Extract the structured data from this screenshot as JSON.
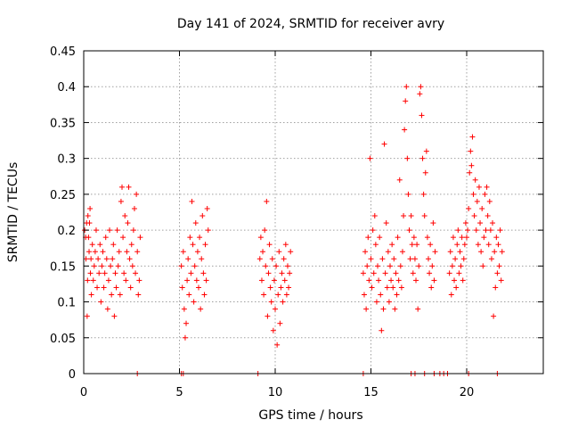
{
  "chart_data": {
    "type": "scatter",
    "title": "Day 141 of 2024, SRMTID for receiver avry",
    "xlabel": "GPS time / hours",
    "ylabel": "SRMTID / TECUs",
    "xlim": [
      0,
      24
    ],
    "ylim": [
      0,
      0.45
    ],
    "xticks": [
      0,
      5,
      10,
      15,
      20
    ],
    "xtick_labels": [
      "0",
      "5",
      "10",
      "15",
      "20"
    ],
    "yticks": [
      0,
      0.05,
      0.1,
      0.15,
      0.2,
      0.25,
      0.3,
      0.35,
      0.4,
      0.45
    ],
    "ytick_labels": [
      "0",
      "0.05",
      "0.1",
      "0.15",
      "0.2",
      "0.25",
      "0.3",
      "0.35",
      "0.4",
      "0.45"
    ],
    "grid": true,
    "marker": "plus",
    "color": "#ff0000",
    "series": [
      {
        "name": "SRMTID",
        "points": [
          [
            0.05,
            0.2
          ],
          [
            0.1,
            0.19
          ],
          [
            0.12,
            0.16
          ],
          [
            0.15,
            0.21
          ],
          [
            0.18,
            0.08
          ],
          [
            0.2,
            0.13
          ],
          [
            0.22,
            0.22
          ],
          [
            0.25,
            0.19
          ],
          [
            0.28,
            0.17
          ],
          [
            0.3,
            0.21
          ],
          [
            0.33,
            0.23
          ],
          [
            0.35,
            0.14
          ],
          [
            0.38,
            0.16
          ],
          [
            0.4,
            0.11
          ],
          [
            0.45,
            0.18
          ],
          [
            0.5,
            0.13
          ],
          [
            0.55,
            0.15
          ],
          [
            0.6,
            0.17
          ],
          [
            0.65,
            0.2
          ],
          [
            0.7,
            0.12
          ],
          [
            0.75,
            0.16
          ],
          [
            0.8,
            0.14
          ],
          [
            0.85,
            0.18
          ],
          [
            0.9,
            0.1
          ],
          [
            0.95,
            0.15
          ],
          [
            1.0,
            0.17
          ],
          [
            1.05,
            0.12
          ],
          [
            1.1,
            0.14
          ],
          [
            1.15,
            0.19
          ],
          [
            1.2,
            0.16
          ],
          [
            1.25,
            0.09
          ],
          [
            1.3,
            0.13
          ],
          [
            1.35,
            0.2
          ],
          [
            1.4,
            0.15
          ],
          [
            1.45,
            0.11
          ],
          [
            1.5,
            0.16
          ],
          [
            1.55,
            0.18
          ],
          [
            1.6,
            0.08
          ],
          [
            1.65,
            0.14
          ],
          [
            1.7,
            0.12
          ],
          [
            1.75,
            0.2
          ],
          [
            1.8,
            0.15
          ],
          [
            1.85,
            0.17
          ],
          [
            1.9,
            0.11
          ],
          [
            1.95,
            0.24
          ],
          [
            2.0,
            0.26
          ],
          [
            2.05,
            0.19
          ],
          [
            2.1,
            0.14
          ],
          [
            2.15,
            0.22
          ],
          [
            2.2,
            0.13
          ],
          [
            2.25,
            0.17
          ],
          [
            2.3,
            0.21
          ],
          [
            2.35,
            0.26
          ],
          [
            2.4,
            0.16
          ],
          [
            2.45,
            0.12
          ],
          [
            2.5,
            0.18
          ],
          [
            2.55,
            0.15
          ],
          [
            2.6,
            0.2
          ],
          [
            2.65,
            0.23
          ],
          [
            2.7,
            0.14
          ],
          [
            2.75,
            0.25
          ],
          [
            2.8,
            0.17
          ],
          [
            2.85,
            0.11
          ],
          [
            2.9,
            0.13
          ],
          [
            2.95,
            0.19
          ],
          [
            5.1,
            0.15
          ],
          [
            5.15,
            0.12
          ],
          [
            5.2,
            0.17
          ],
          [
            5.25,
            0.09
          ],
          [
            5.3,
            0.05
          ],
          [
            5.35,
            0.07
          ],
          [
            5.4,
            0.13
          ],
          [
            5.45,
            0.16
          ],
          [
            5.5,
            0.11
          ],
          [
            5.55,
            0.19
          ],
          [
            5.6,
            0.14
          ],
          [
            5.65,
            0.24
          ],
          [
            5.7,
            0.18
          ],
          [
            5.75,
            0.1
          ],
          [
            5.8,
            0.15
          ],
          [
            5.85,
            0.21
          ],
          [
            5.9,
            0.13
          ],
          [
            5.95,
            0.17
          ],
          [
            6.0,
            0.12
          ],
          [
            6.05,
            0.19
          ],
          [
            6.1,
            0.09
          ],
          [
            6.15,
            0.16
          ],
          [
            6.2,
            0.22
          ],
          [
            6.25,
            0.14
          ],
          [
            6.3,
            0.11
          ],
          [
            6.35,
            0.18
          ],
          [
            6.4,
            0.13
          ],
          [
            6.45,
            0.23
          ],
          [
            6.5,
            0.2
          ],
          [
            9.2,
            0.16
          ],
          [
            9.25,
            0.19
          ],
          [
            9.3,
            0.13
          ],
          [
            9.35,
            0.17
          ],
          [
            9.4,
            0.11
          ],
          [
            9.45,
            0.2
          ],
          [
            9.5,
            0.15
          ],
          [
            9.55,
            0.24
          ],
          [
            9.6,
            0.08
          ],
          [
            9.65,
            0.14
          ],
          [
            9.7,
            0.18
          ],
          [
            9.75,
            0.12
          ],
          [
            9.8,
            0.1
          ],
          [
            9.85,
            0.16
          ],
          [
            9.9,
            0.06
          ],
          [
            9.95,
            0.13
          ],
          [
            10.0,
            0.09
          ],
          [
            10.05,
            0.15
          ],
          [
            10.1,
            0.04
          ],
          [
            10.15,
            0.11
          ],
          [
            10.2,
            0.17
          ],
          [
            10.25,
            0.07
          ],
          [
            10.3,
            0.12
          ],
          [
            10.35,
            0.14
          ],
          [
            10.4,
            0.1
          ],
          [
            10.45,
            0.16
          ],
          [
            10.5,
            0.13
          ],
          [
            10.55,
            0.18
          ],
          [
            10.6,
            0.11
          ],
          [
            10.65,
            0.15
          ],
          [
            10.7,
            0.12
          ],
          [
            10.75,
            0.14
          ],
          [
            10.8,
            0.17
          ],
          [
            14.6,
            0.14
          ],
          [
            14.65,
            0.11
          ],
          [
            14.7,
            0.17
          ],
          [
            14.75,
            0.09
          ],
          [
            14.8,
            0.15
          ],
          [
            14.85,
            0.19
          ],
          [
            14.9,
            0.13
          ],
          [
            14.95,
            0.3
          ],
          [
            15.0,
            0.16
          ],
          [
            15.05,
            0.12
          ],
          [
            15.1,
            0.2
          ],
          [
            15.15,
            0.14
          ],
          [
            15.2,
            0.22
          ],
          [
            15.25,
            0.18
          ],
          [
            15.3,
            0.1
          ],
          [
            15.35,
            0.15
          ],
          [
            15.4,
            0.13
          ],
          [
            15.45,
            0.19
          ],
          [
            15.5,
            0.11
          ],
          [
            15.55,
            0.06
          ],
          [
            15.6,
            0.16
          ],
          [
            15.65,
            0.09
          ],
          [
            15.7,
            0.32
          ],
          [
            15.75,
            0.14
          ],
          [
            15.8,
            0.21
          ],
          [
            15.85,
            0.12
          ],
          [
            15.9,
            0.17
          ],
          [
            15.95,
            0.1
          ],
          [
            16.0,
            0.15
          ],
          [
            16.05,
            0.13
          ],
          [
            16.1,
            0.18
          ],
          [
            16.15,
            0.12
          ],
          [
            16.2,
            0.16
          ],
          [
            16.25,
            0.09
          ],
          [
            16.3,
            0.14
          ],
          [
            16.35,
            0.11
          ],
          [
            16.4,
            0.19
          ],
          [
            16.45,
            0.13
          ],
          [
            16.5,
            0.27
          ],
          [
            16.55,
            0.15
          ],
          [
            16.6,
            0.12
          ],
          [
            16.65,
            0.17
          ],
          [
            16.7,
            0.22
          ],
          [
            16.75,
            0.34
          ],
          [
            16.8,
            0.38
          ],
          [
            16.85,
            0.4
          ],
          [
            16.9,
            0.3
          ],
          [
            16.95,
            0.25
          ],
          [
            17.0,
            0.2
          ],
          [
            17.05,
            0.16
          ],
          [
            17.1,
            0.22
          ],
          [
            17.15,
            0.18
          ],
          [
            17.2,
            0.14
          ],
          [
            17.25,
            0.19
          ],
          [
            17.3,
            0.16
          ],
          [
            17.35,
            0.13
          ],
          [
            17.4,
            0.18
          ],
          [
            17.45,
            0.09
          ],
          [
            17.5,
            0.15
          ],
          [
            17.55,
            0.39
          ],
          [
            17.6,
            0.4
          ],
          [
            17.65,
            0.36
          ],
          [
            17.7,
            0.3
          ],
          [
            17.75,
            0.25
          ],
          [
            17.8,
            0.22
          ],
          [
            17.85,
            0.28
          ],
          [
            17.9,
            0.31
          ],
          [
            17.95,
            0.19
          ],
          [
            18.0,
            0.16
          ],
          [
            18.05,
            0.14
          ],
          [
            18.1,
            0.18
          ],
          [
            18.15,
            0.12
          ],
          [
            18.2,
            0.15
          ],
          [
            18.25,
            0.21
          ],
          [
            18.3,
            0.13
          ],
          [
            18.35,
            0.17
          ],
          [
            19.1,
            0.14
          ],
          [
            19.15,
            0.17
          ],
          [
            19.2,
            0.11
          ],
          [
            19.25,
            0.15
          ],
          [
            19.3,
            0.19
          ],
          [
            19.35,
            0.13
          ],
          [
            19.4,
            0.16
          ],
          [
            19.45,
            0.12
          ],
          [
            19.5,
            0.18
          ],
          [
            19.55,
            0.2
          ],
          [
            19.6,
            0.14
          ],
          [
            19.65,
            0.17
          ],
          [
            19.7,
            0.15
          ],
          [
            19.75,
            0.19
          ],
          [
            19.8,
            0.13
          ],
          [
            19.85,
            0.16
          ],
          [
            19.9,
            0.18
          ],
          [
            19.95,
            0.21
          ],
          [
            20.0,
            0.19
          ],
          [
            20.05,
            0.2
          ],
          [
            20.1,
            0.23
          ],
          [
            20.15,
            0.28
          ],
          [
            20.2,
            0.31
          ],
          [
            20.25,
            0.29
          ],
          [
            20.3,
            0.33
          ],
          [
            20.35,
            0.25
          ],
          [
            20.4,
            0.22
          ],
          [
            20.45,
            0.27
          ],
          [
            20.5,
            0.2
          ],
          [
            20.55,
            0.24
          ],
          [
            20.6,
            0.18
          ],
          [
            20.65,
            0.26
          ],
          [
            20.7,
            0.21
          ],
          [
            20.75,
            0.17
          ],
          [
            20.8,
            0.23
          ],
          [
            20.85,
            0.15
          ],
          [
            20.9,
            0.19
          ],
          [
            20.95,
            0.25
          ],
          [
            21.0,
            0.2
          ],
          [
            21.05,
            0.26
          ],
          [
            21.1,
            0.22
          ],
          [
            21.15,
            0.18
          ],
          [
            21.2,
            0.24
          ],
          [
            21.25,
            0.2
          ],
          [
            21.3,
            0.16
          ],
          [
            21.35,
            0.21
          ],
          [
            21.4,
            0.08
          ],
          [
            21.45,
            0.17
          ],
          [
            21.5,
            0.12
          ],
          [
            21.55,
            0.19
          ],
          [
            21.6,
            0.14
          ],
          [
            21.65,
            0.18
          ],
          [
            21.7,
            0.15
          ],
          [
            21.75,
            0.2
          ],
          [
            21.8,
            0.13
          ],
          [
            21.85,
            0.17
          ]
        ]
      }
    ],
    "zero_points_x": [
      2.8,
      5.1,
      5.2,
      9.1,
      14.6,
      17.1,
      17.3,
      17.8,
      18.3,
      18.6,
      18.8,
      19.0,
      20.1,
      21.6
    ]
  }
}
